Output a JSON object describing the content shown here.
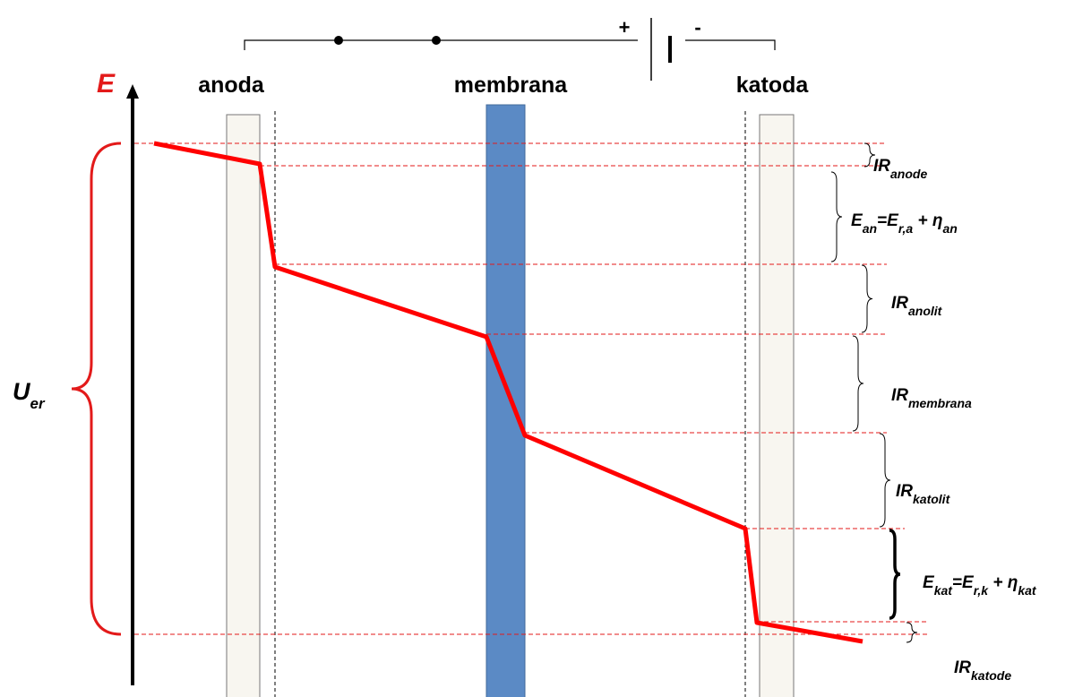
{
  "axis_label": "E",
  "electrodes": {
    "anode": "anoda",
    "membrane": "membrana",
    "cathode": "katoda"
  },
  "battery": {
    "plus": "+",
    "minus": "-"
  },
  "total_voltage": [
    {
      "base": "U",
      "sub": "er"
    }
  ],
  "levels": [
    [
      {
        "base": "IR",
        "sub": "anode"
      }
    ],
    [
      {
        "base": "E",
        "sub": "an"
      },
      {
        "base": "=E",
        "sub": "r,a"
      },
      {
        "base": " + η",
        "sub": "an"
      }
    ],
    [
      {
        "base": "IR",
        "sub": "anolit"
      }
    ],
    [
      {
        "base": "IR",
        "sub": "membrana"
      }
    ],
    [
      {
        "base": "IR",
        "sub": "katolit"
      }
    ],
    [
      {
        "base": "E",
        "sub": "kat"
      },
      {
        "base": "=E",
        "sub": "r,k"
      },
      {
        "base": " + η",
        "sub": "kat"
      }
    ],
    [
      {
        "base": "IR",
        "sub": "katode"
      }
    ]
  ]
}
